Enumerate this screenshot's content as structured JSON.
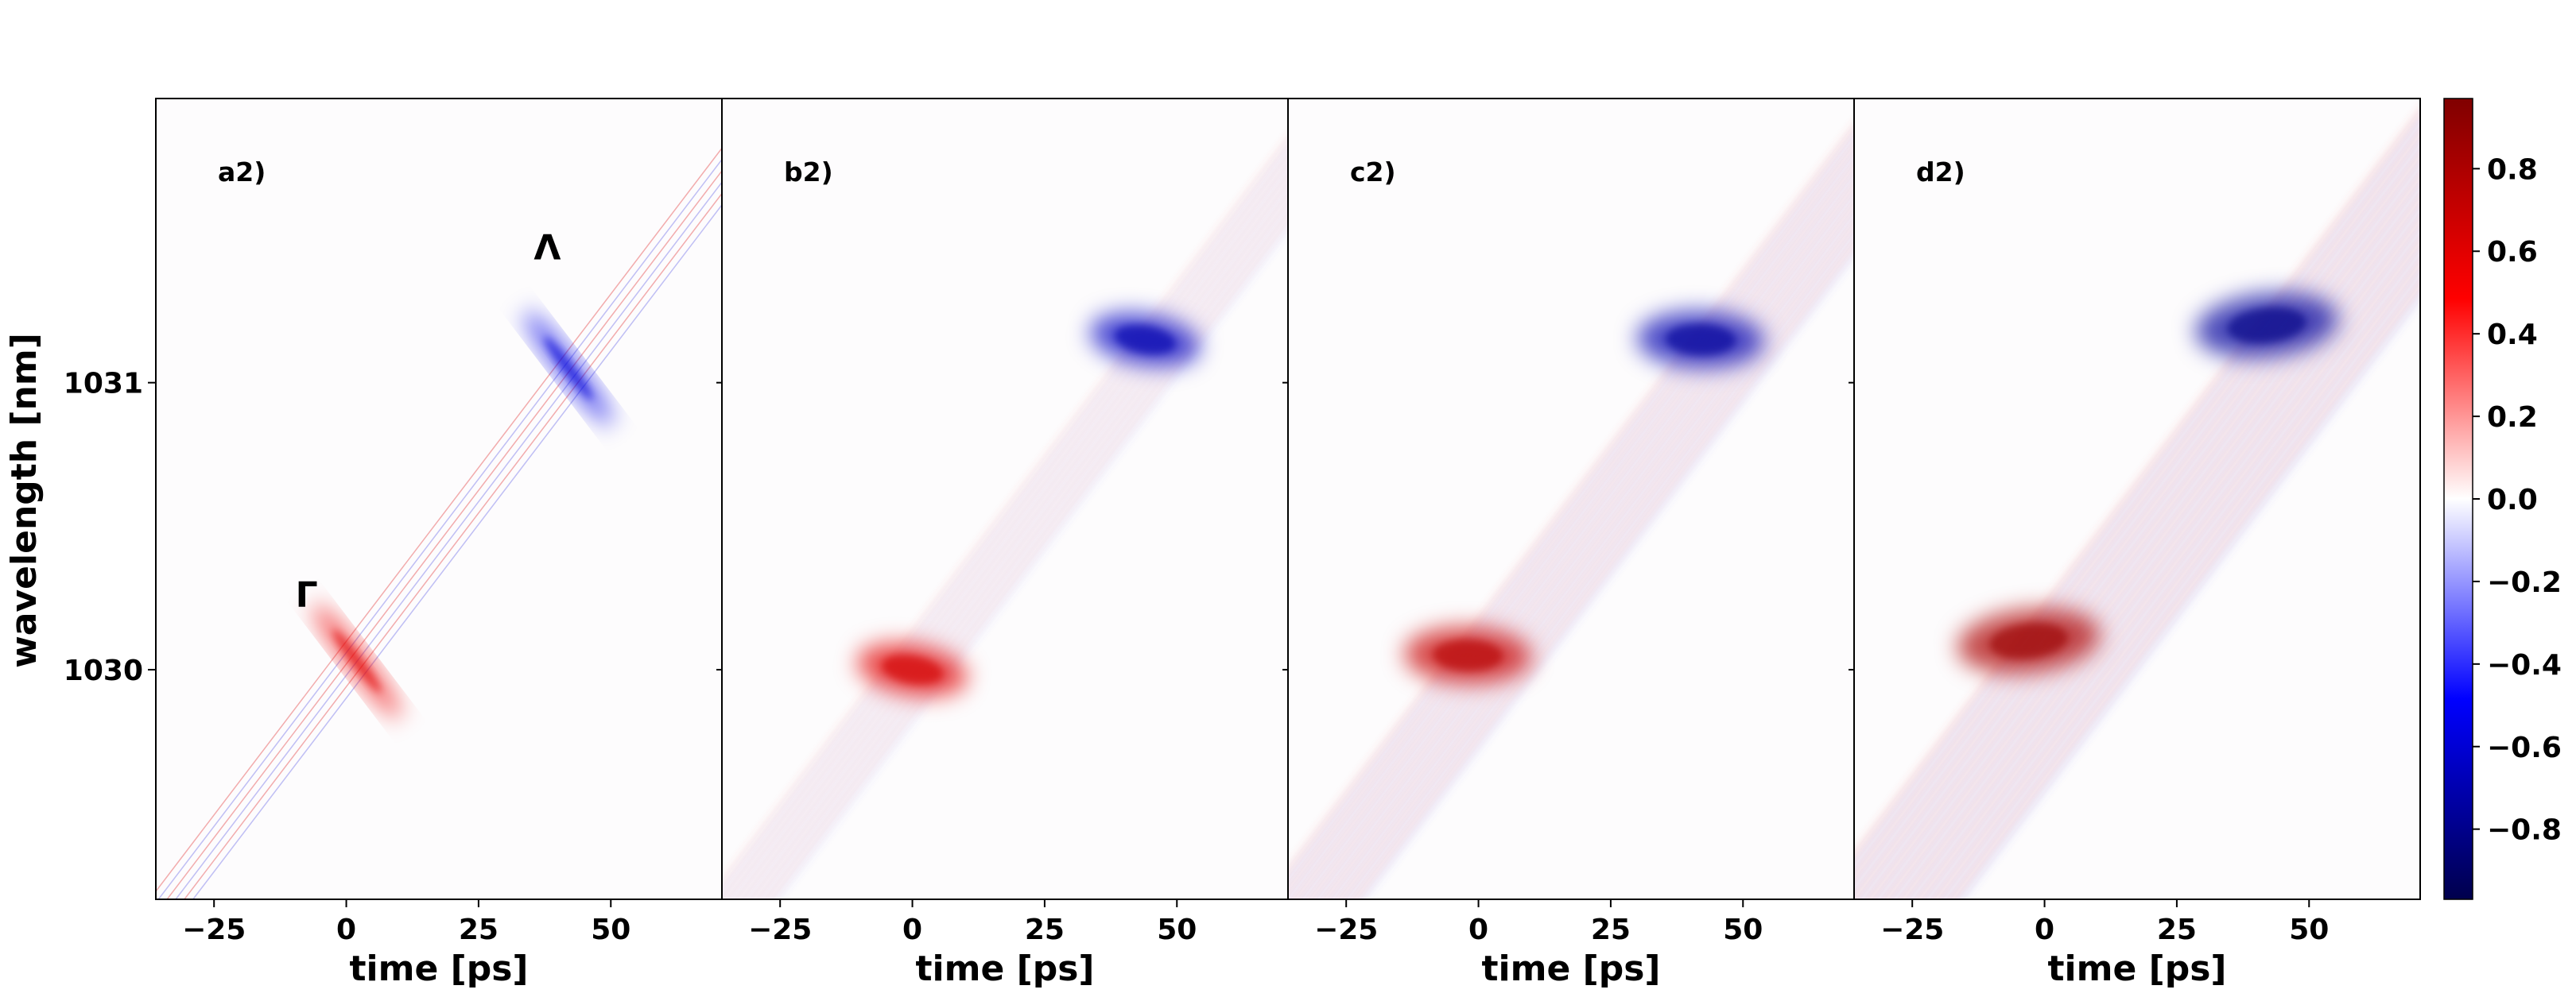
{
  "chart_data": {
    "type": "heatmap",
    "layout": "4 panels sharing the y axis, with one shared colorbar",
    "xlabel": "time [ps]",
    "ylabel": "wavelength [nm]",
    "xlim": [
      -36,
      71
    ],
    "ylim": [
      1029.2,
      1031.99
    ],
    "xticks": [
      -25,
      0,
      25,
      50
    ],
    "xtick_labels": [
      "−25",
      "0",
      "25",
      "50"
    ],
    "yticks": [
      1030,
      1031
    ],
    "ytick_labels": [
      "1030",
      "1031"
    ],
    "colormap": "seismic",
    "colors": {
      "negative": "#00004c",
      "mid": "#ffffff",
      "positive": "#800000"
    },
    "colorbar": {
      "range": [
        -0.97,
        0.97
      ],
      "ticks": [
        0.8,
        0.6,
        0.4,
        0.2,
        0.0,
        -0.2,
        -0.4,
        -0.6,
        -0.8
      ],
      "tick_labels": [
        "0.8",
        "0.6",
        "0.4",
        "0.2",
        "0.0",
        "−0.2",
        "−0.4",
        "−0.6",
        "−0.8"
      ]
    },
    "panels": [
      {
        "label": "a2)",
        "band": {
          "slope_nm_per_ps": 0.0242,
          "offset_ps": 0,
          "width_ps": 7,
          "fringes": "thin lines along the diagonal"
        },
        "features": [
          {
            "x": 2,
            "y": 1030.03,
            "value": 0.55,
            "note": "red lobe"
          },
          {
            "x": 42,
            "y": 1031.05,
            "value": -0.55,
            "note": "blue-purple lobe"
          }
        ],
        "annotations": [
          {
            "text": "Γ",
            "x": -7.5,
            "y": 1030.22
          },
          {
            "text": "Λ",
            "x": 38,
            "y": 1031.43
          }
        ]
      },
      {
        "label": "b2)",
        "band": {
          "slope_nm_per_ps": 0.0242,
          "offset_ps": 1,
          "width_ps": 10,
          "fringes": "weak striations"
        },
        "features": [
          {
            "x": 0,
            "y": 1030.0,
            "value": 0.6,
            "note": "red lobe"
          },
          {
            "x": 44,
            "y": 1031.15,
            "value": -0.65,
            "note": "purple lobe"
          }
        ]
      },
      {
        "label": "c2)",
        "band": {
          "slope_nm_per_ps": 0.0242,
          "offset_ps": 2,
          "width_ps": 14,
          "fringes": "striations"
        },
        "features": [
          {
            "x": -2,
            "y": 1030.05,
            "value": 0.7,
            "note": "tilted red lobe"
          },
          {
            "x": 42,
            "y": 1031.15,
            "value": -0.7,
            "note": "tilted purple lobe"
          }
        ]
      },
      {
        "label": "d2)",
        "band": {
          "slope_nm_per_ps": 0.0242,
          "offset_ps": 4,
          "width_ps": 20,
          "fringes": "strong striations"
        },
        "features": [
          {
            "x": -3,
            "y": 1030.1,
            "value": 0.8,
            "note": "strongly tilted red lobe"
          },
          {
            "x": 42,
            "y": 1031.2,
            "value": -0.75,
            "note": "strongly tilted purple lobe"
          }
        ]
      }
    ]
  }
}
